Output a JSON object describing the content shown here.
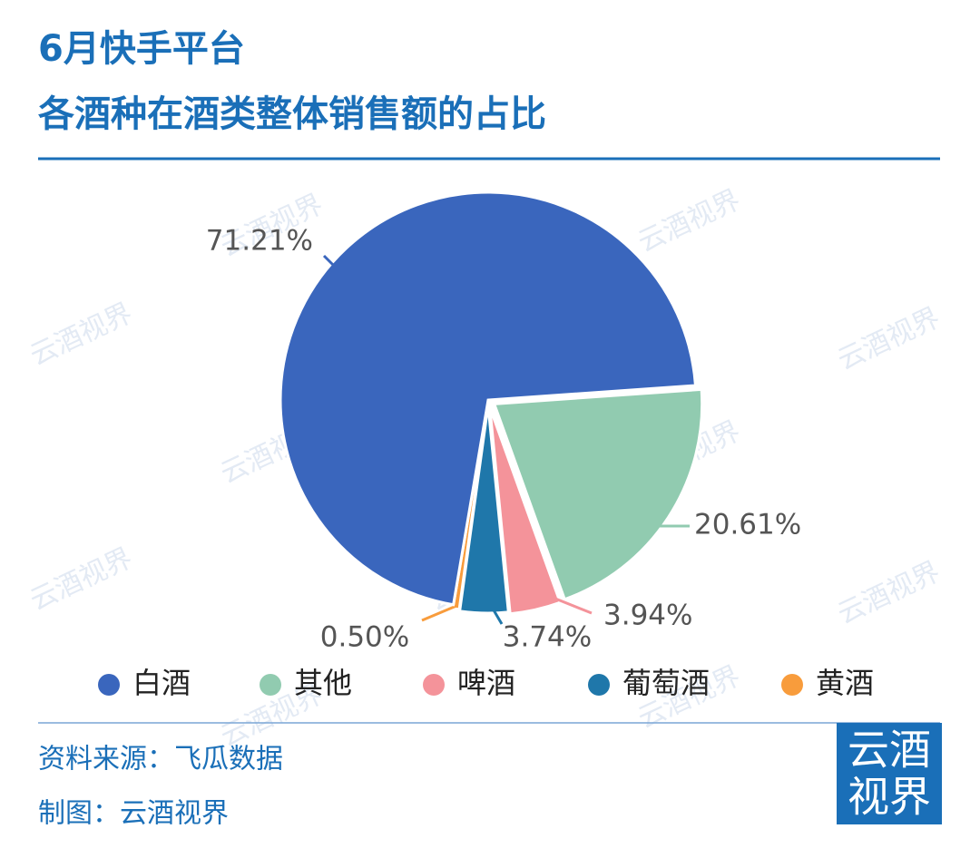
{
  "title": [
    "6月快手平台",
    "各酒种在酒类整体销售额的占比"
  ],
  "chart_data": {
    "type": "pie",
    "series": [
      {
        "name": "白酒",
        "color": "#3a66bd",
        "values": [
          71.21
        ],
        "value_labels": [
          "71.21%"
        ]
      },
      {
        "name": "其他",
        "color": "#91cbb0",
        "values": [
          20.61
        ],
        "value_labels": [
          "20.61%"
        ]
      },
      {
        "name": "啤酒",
        "color": "#f4939a",
        "values": [
          3.94
        ],
        "value_labels": [
          "3.94%"
        ]
      },
      {
        "name": "葡萄酒",
        "color": "#1f77aa",
        "values": [
          3.74
        ],
        "value_labels": [
          "3.74%"
        ]
      },
      {
        "name": "黄酒",
        "color": "#f89c3c",
        "values": [
          0.5
        ],
        "value_labels": [
          "0.50%"
        ]
      }
    ]
  },
  "source": "资料来源：飞瓜数据",
  "credit": "制图：云酒视界",
  "logo": [
    "云酒",
    "视界"
  ],
  "watermark": "云酒视界"
}
